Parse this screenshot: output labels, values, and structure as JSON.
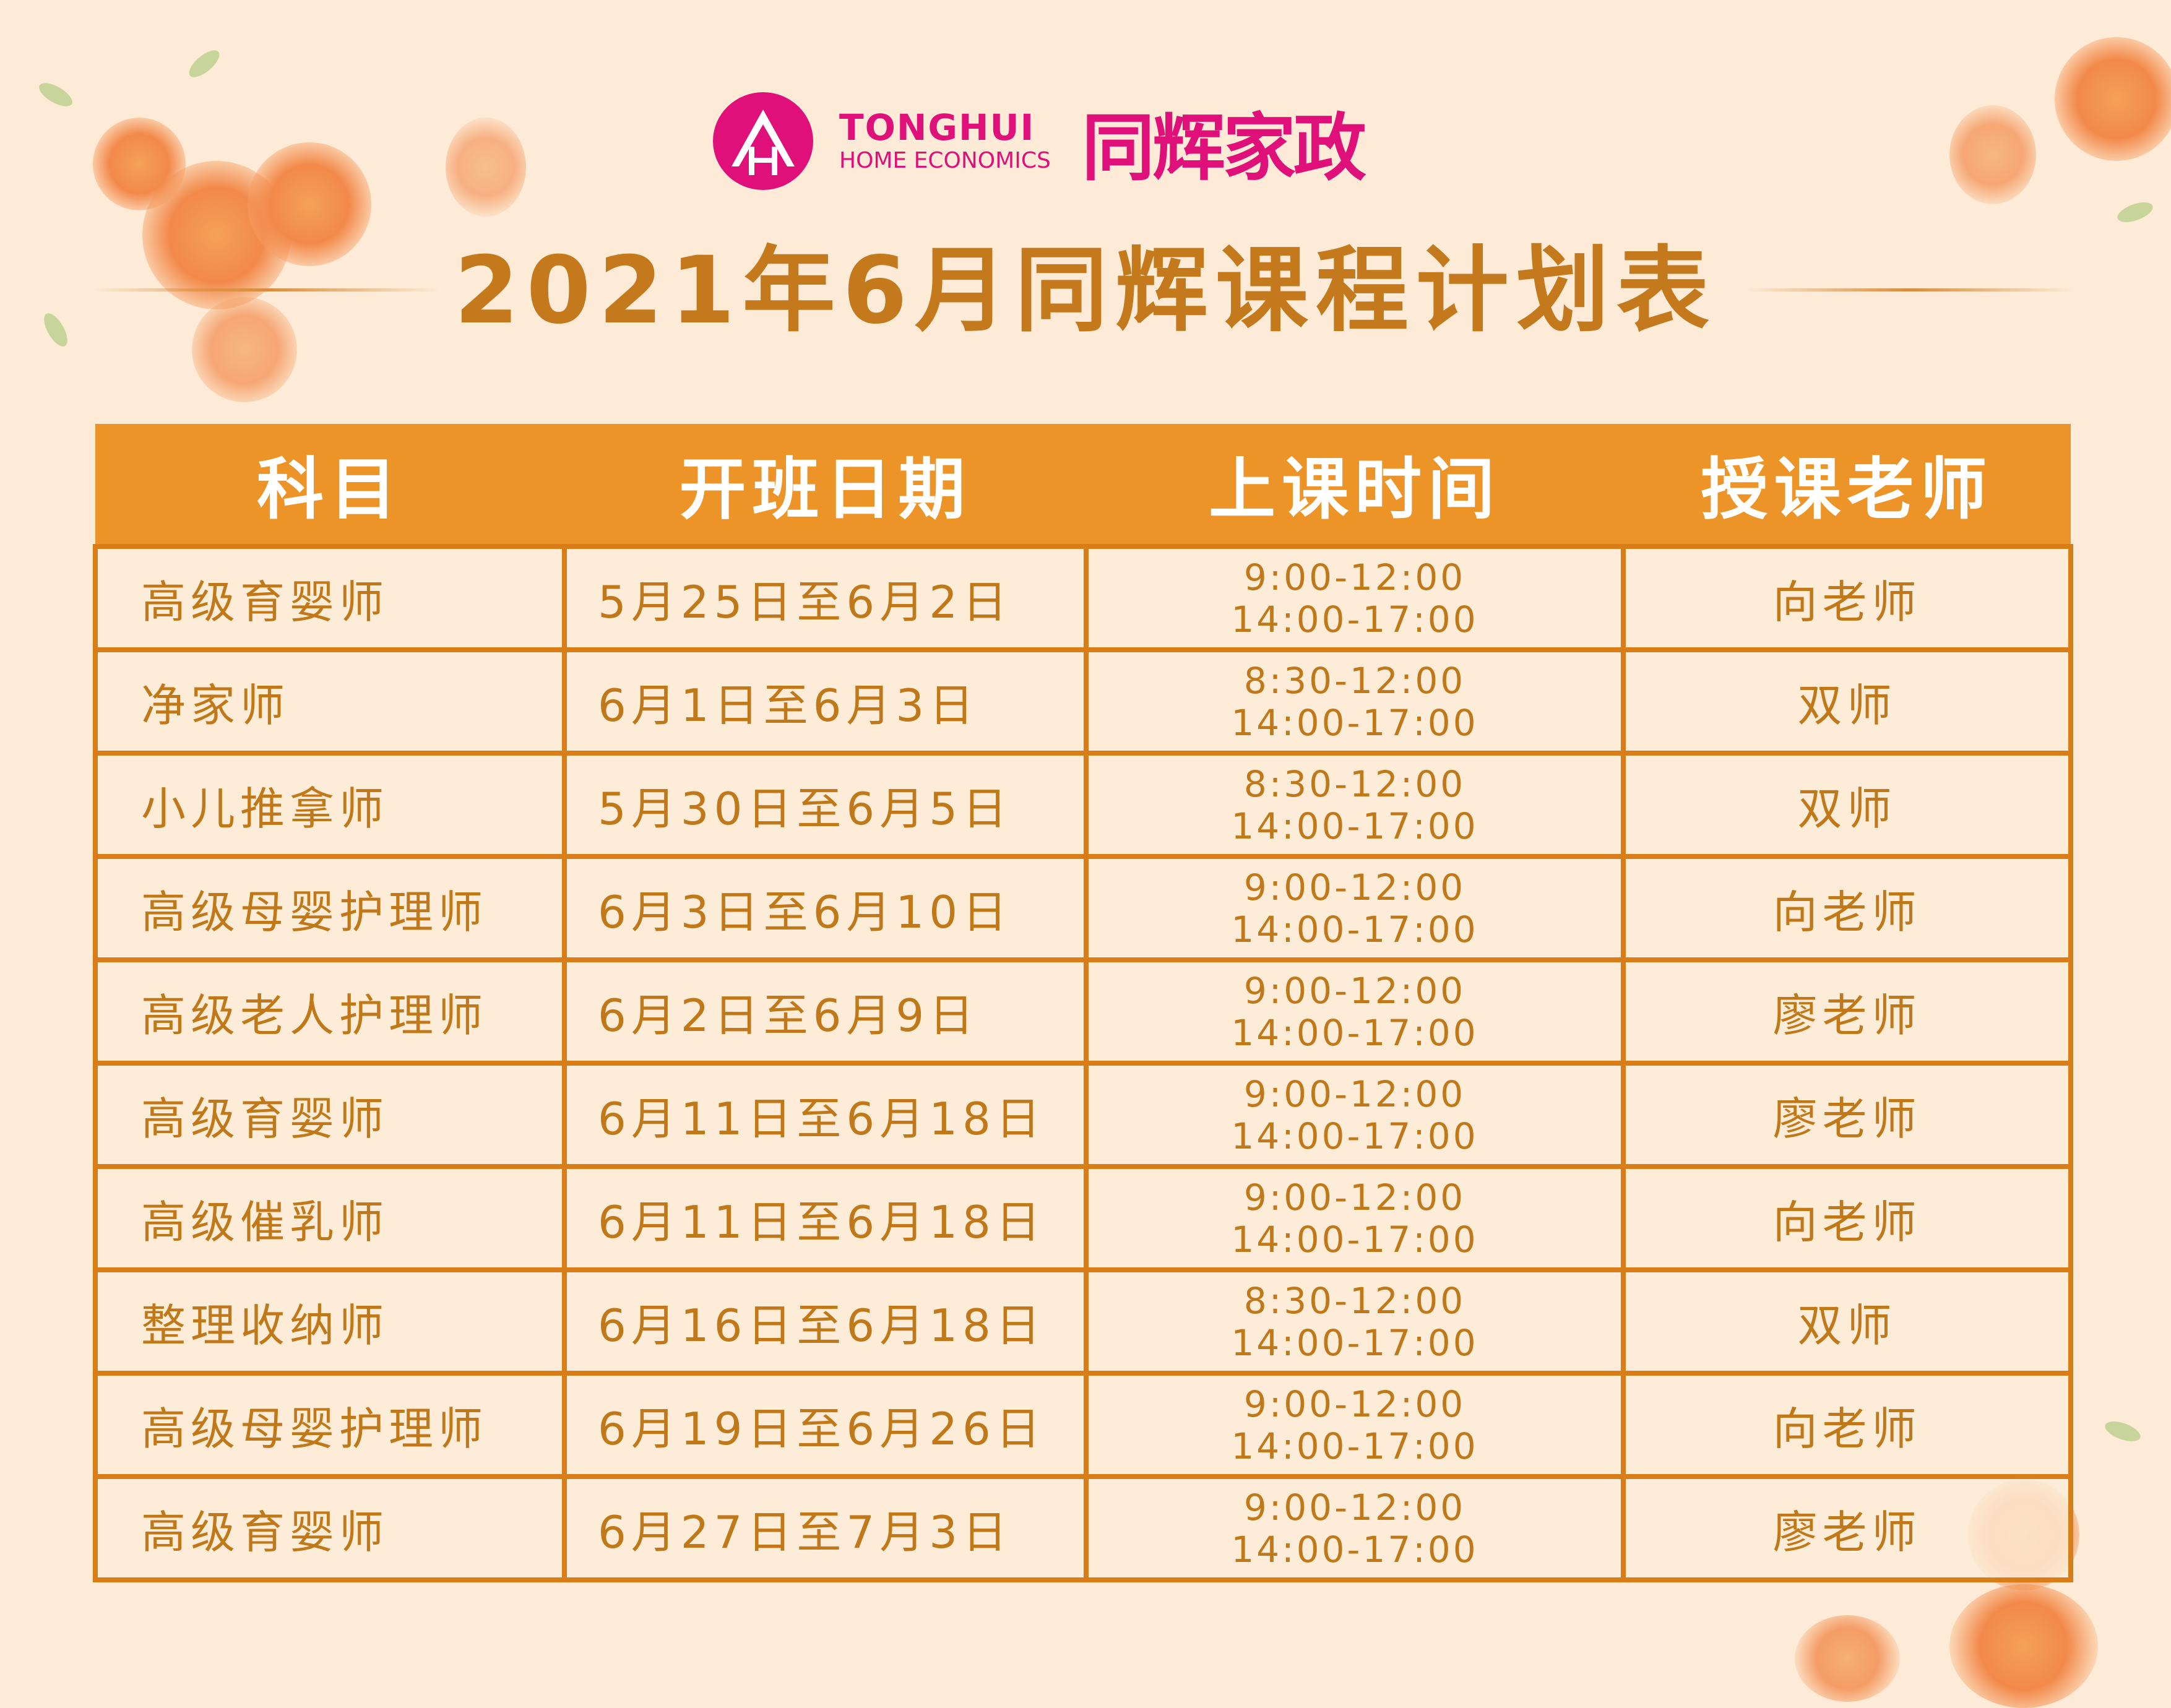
{
  "logo": {
    "en_name": "TONGHUI",
    "en_sub": "HOME ECONOMICS",
    "cn_name": "同辉家政"
  },
  "title": "2021年6月同辉课程计划表",
  "colors": {
    "accent": "#ec9428",
    "text": "#c07818",
    "brand": "#e0107a",
    "background": "#fdebd7"
  },
  "table": {
    "headers": [
      "科目",
      "开班日期",
      "上课时间",
      "授课老师"
    ],
    "rows": [
      {
        "subject": "高级育婴师",
        "dates": "5月25日至6月2日",
        "time1": "9:00-12:00",
        "time2": "14:00-17:00",
        "teacher": "向老师"
      },
      {
        "subject": "净家师",
        "dates": "6月1日至6月3日",
        "time1": "8:30-12:00",
        "time2": "14:00-17:00",
        "teacher": "双师"
      },
      {
        "subject": "小儿推拿师",
        "dates": "5月30日至6月5日",
        "time1": "8:30-12:00",
        "time2": "14:00-17:00",
        "teacher": "双师"
      },
      {
        "subject": "高级母婴护理师",
        "dates": "6月3日至6月10日",
        "time1": "9:00-12:00",
        "time2": "14:00-17:00",
        "teacher": "向老师"
      },
      {
        "subject": "高级老人护理师",
        "dates": "6月2日至6月9日",
        "time1": "9:00-12:00",
        "time2": "14:00-17:00",
        "teacher": "廖老师"
      },
      {
        "subject": "高级育婴师",
        "dates": "6月11日至6月18日",
        "time1": "9:00-12:00",
        "time2": "14:00-17:00",
        "teacher": "廖老师"
      },
      {
        "subject": "高级催乳师",
        "dates": "6月11日至6月18日",
        "time1": "9:00-12:00",
        "time2": "14:00-17:00",
        "teacher": "向老师"
      },
      {
        "subject": "整理收纳师",
        "dates": "6月16日至6月18日",
        "time1": "8:30-12:00",
        "time2": "14:00-17:00",
        "teacher": "双师"
      },
      {
        "subject": "高级母婴护理师",
        "dates": "6月19日至6月26日",
        "time1": "9:00-12:00",
        "time2": "14:00-17:00",
        "teacher": "向老师"
      },
      {
        "subject": "高级育婴师",
        "dates": "6月27日至7月3日",
        "time1": "9:00-12:00",
        "time2": "14:00-17:00",
        "teacher": "廖老师"
      }
    ]
  }
}
